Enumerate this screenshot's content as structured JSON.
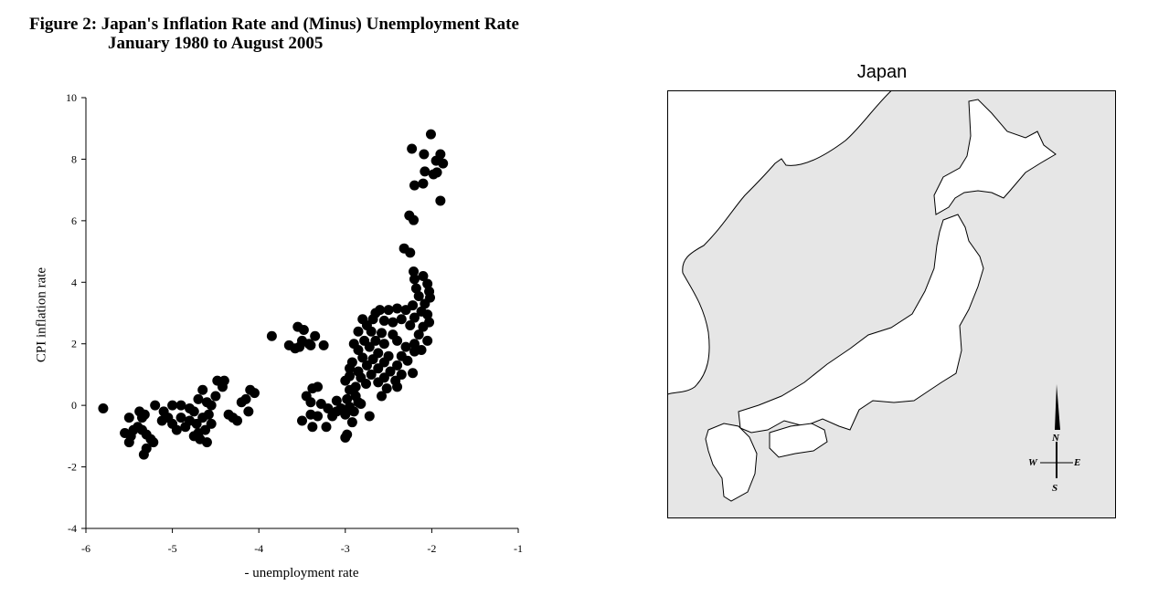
{
  "title": {
    "line1": "Figure 2: Japan's Inflation Rate and (Minus) Unemployment Rate",
    "line2": "January 1980 to August 2005"
  },
  "chart_data": {
    "type": "scatter",
    "xlabel": "- unemployment rate",
    "ylabel": "CPI inflation rate",
    "xlim": [
      -6,
      -1
    ],
    "ylim": [
      -4,
      10
    ],
    "xticks": [
      -6,
      -5,
      -4,
      -3,
      -2,
      -1
    ],
    "yticks": [
      -4,
      -2,
      0,
      2,
      4,
      6,
      8,
      10
    ],
    "grid": false,
    "marker_color": "#000000",
    "points": [
      [
        -2.01,
        8.81
      ],
      [
        -2.23,
        8.34
      ],
      [
        -2.09,
        8.16
      ],
      [
        -1.9,
        8.16
      ],
      [
        -1.95,
        7.95
      ],
      [
        -1.87,
        7.86
      ],
      [
        -2.08,
        7.6
      ],
      [
        -1.98,
        7.51
      ],
      [
        -1.94,
        7.57
      ],
      [
        -2.1,
        7.21
      ],
      [
        -2.2,
        7.15
      ],
      [
        -1.9,
        6.65
      ],
      [
        -2.26,
        6.17
      ],
      [
        -2.21,
        6.02
      ],
      [
        -2.32,
        5.1
      ],
      [
        -2.25,
        4.96
      ],
      [
        -2.21,
        4.35
      ],
      [
        -2.2,
        4.1
      ],
      [
        -2.1,
        4.2
      ],
      [
        -2.05,
        3.95
      ],
      [
        -2.03,
        3.7
      ],
      [
        -2.18,
        3.8
      ],
      [
        -2.15,
        3.55
      ],
      [
        -2.02,
        3.5
      ],
      [
        -2.08,
        3.3
      ],
      [
        -2.22,
        3.25
      ],
      [
        -2.3,
        3.1
      ],
      [
        -2.4,
        3.15
      ],
      [
        -2.5,
        3.1
      ],
      [
        -2.6,
        3.1
      ],
      [
        -2.65,
        3.0
      ],
      [
        -2.12,
        3.05
      ],
      [
        -2.05,
        2.95
      ],
      [
        -2.2,
        2.85
      ],
      [
        -2.03,
        2.7
      ],
      [
        -2.1,
        2.55
      ],
      [
        -2.25,
        2.6
      ],
      [
        -2.35,
        2.8
      ],
      [
        -2.45,
        2.7
      ],
      [
        -2.55,
        2.75
      ],
      [
        -2.68,
        2.8
      ],
      [
        -2.8,
        2.8
      ],
      [
        -2.75,
        2.6
      ],
      [
        -2.85,
        2.4
      ],
      [
        -2.7,
        2.4
      ],
      [
        -2.58,
        2.35
      ],
      [
        -2.45,
        2.3
      ],
      [
        -2.15,
        2.3
      ],
      [
        -2.05,
        2.1
      ],
      [
        -2.2,
        2.0
      ],
      [
        -2.12,
        1.8
      ],
      [
        -2.2,
        1.75
      ],
      [
        -2.3,
        1.9
      ],
      [
        -2.4,
        2.1
      ],
      [
        -2.55,
        2.0
      ],
      [
        -2.65,
        2.1
      ],
      [
        -2.78,
        2.1
      ],
      [
        -2.9,
        2.0
      ],
      [
        -2.85,
        1.8
      ],
      [
        -2.72,
        1.9
      ],
      [
        -2.62,
        1.7
      ],
      [
        -2.5,
        1.6
      ],
      [
        -2.35,
        1.6
      ],
      [
        -2.28,
        1.45
      ],
      [
        -2.4,
        1.3
      ],
      [
        -2.55,
        1.4
      ],
      [
        -2.68,
        1.5
      ],
      [
        -2.8,
        1.55
      ],
      [
        -2.92,
        1.4
      ],
      [
        -2.95,
        1.2
      ],
      [
        -2.85,
        1.1
      ],
      [
        -2.75,
        1.3
      ],
      [
        -2.62,
        1.2
      ],
      [
        -2.48,
        1.1
      ],
      [
        -2.35,
        1.0
      ],
      [
        -2.22,
        1.05
      ],
      [
        -2.42,
        0.8
      ],
      [
        -2.55,
        0.9
      ],
      [
        -2.7,
        1.0
      ],
      [
        -2.82,
        0.9
      ],
      [
        -2.95,
        0.95
      ],
      [
        -3.0,
        0.8
      ],
      [
        -2.88,
        0.6
      ],
      [
        -2.76,
        0.7
      ],
      [
        -2.62,
        0.75
      ],
      [
        -2.52,
        0.55
      ],
      [
        -2.4,
        0.6
      ],
      [
        -2.58,
        0.3
      ],
      [
        -2.88,
        0.3
      ],
      [
        -2.95,
        0.5
      ],
      [
        -2.85,
        0.1
      ],
      [
        -2.98,
        0.2
      ],
      [
        -3.1,
        0.15
      ],
      [
        -3.05,
        -0.1
      ],
      [
        -2.95,
        -0.05
      ],
      [
        -2.82,
        0.05
      ],
      [
        -2.72,
        -0.35
      ],
      [
        -2.9,
        -0.2
      ],
      [
        -3.0,
        -0.3
      ],
      [
        -2.92,
        -0.55
      ],
      [
        -2.98,
        -0.95
      ],
      [
        -3.0,
        -1.05
      ],
      [
        -3.15,
        -0.35
      ],
      [
        -3.2,
        -0.1
      ],
      [
        -3.28,
        0.05
      ],
      [
        -3.4,
        0.1
      ],
      [
        -3.45,
        0.3
      ],
      [
        -3.38,
        0.55
      ],
      [
        -3.32,
        0.6
      ],
      [
        -3.4,
        -0.3
      ],
      [
        -3.5,
        -0.5
      ],
      [
        -3.38,
        -0.7
      ],
      [
        -3.22,
        -0.7
      ],
      [
        -3.1,
        -0.2
      ],
      [
        -3.32,
        -0.35
      ],
      [
        -3.85,
        2.25
      ],
      [
        -3.55,
        2.55
      ],
      [
        -3.48,
        2.45
      ],
      [
        -3.35,
        2.25
      ],
      [
        -3.5,
        2.1
      ],
      [
        -3.42,
        2.0
      ],
      [
        -3.58,
        1.85
      ],
      [
        -3.65,
        1.95
      ],
      [
        -3.4,
        1.95
      ],
      [
        -3.25,
        1.95
      ],
      [
        -3.53,
        1.9
      ],
      [
        -5.8,
        -0.1
      ],
      [
        -5.5,
        -0.4
      ],
      [
        -5.55,
        -0.9
      ],
      [
        -5.45,
        -0.8
      ],
      [
        -5.4,
        -0.7
      ],
      [
        -5.35,
        -0.4
      ],
      [
        -5.32,
        -0.3
      ],
      [
        -5.38,
        -0.2
      ],
      [
        -5.48,
        -1.0
      ],
      [
        -5.5,
        -1.2
      ],
      [
        -5.35,
        -0.8
      ],
      [
        -5.3,
        -0.95
      ],
      [
        -5.25,
        -1.1
      ],
      [
        -5.22,
        -1.2
      ],
      [
        -5.3,
        -1.4
      ],
      [
        -5.33,
        -1.6
      ],
      [
        -5.2,
        0.0
      ],
      [
        -5.1,
        -0.2
      ],
      [
        -5.05,
        -0.4
      ],
      [
        -5.0,
        -0.6
      ],
      [
        -4.95,
        -0.8
      ],
      [
        -4.9,
        -0.4
      ],
      [
        -4.85,
        -0.7
      ],
      [
        -4.8,
        -0.5
      ],
      [
        -4.75,
        -0.2
      ],
      [
        -4.72,
        -0.6
      ],
      [
        -4.7,
        -0.9
      ],
      [
        -4.68,
        -1.1
      ],
      [
        -4.62,
        -0.8
      ],
      [
        -4.6,
        -1.2
      ],
      [
        -4.65,
        -0.4
      ],
      [
        -4.58,
        -0.3
      ],
      [
        -4.7,
        0.2
      ],
      [
        -4.65,
        0.5
      ],
      [
        -4.55,
        0.0
      ],
      [
        -4.5,
        0.3
      ],
      [
        -4.48,
        0.8
      ],
      [
        -4.4,
        0.8
      ],
      [
        -4.42,
        0.6
      ],
      [
        -4.35,
        -0.3
      ],
      [
        -4.3,
        -0.4
      ],
      [
        -4.25,
        -0.5
      ],
      [
        -4.2,
        0.1
      ],
      [
        -4.15,
        0.2
      ],
      [
        -4.1,
        0.5
      ],
      [
        -4.05,
        0.4
      ],
      [
        -4.12,
        -0.2
      ],
      [
        -4.9,
        0.0
      ],
      [
        -4.8,
        -0.1
      ],
      [
        -5.0,
        0.0
      ],
      [
        -5.12,
        -0.5
      ],
      [
        -4.75,
        -1.0
      ],
      [
        -4.55,
        -0.6
      ],
      [
        -4.6,
        0.1
      ]
    ]
  },
  "map": {
    "title": "Japan",
    "water_color": "#e6e6e6",
    "land_color": "#ffffff",
    "compass": {
      "n": "N",
      "s": "S",
      "e": "E",
      "w": "W"
    }
  }
}
